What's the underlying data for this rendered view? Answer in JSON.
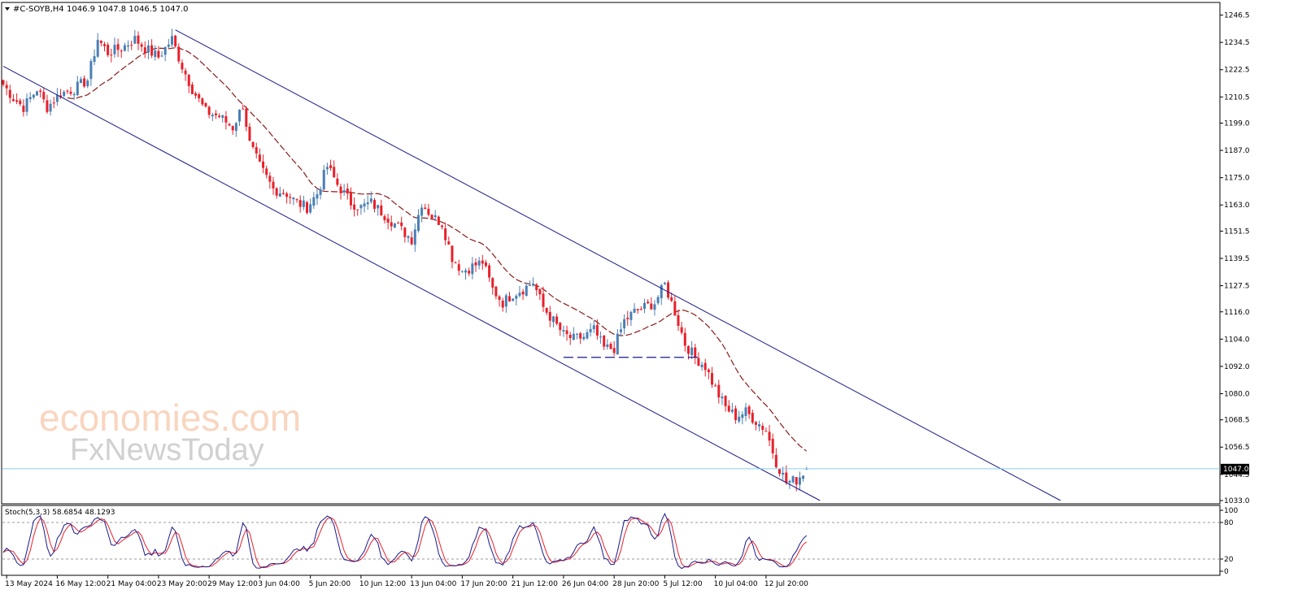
{
  "header": {
    "symbol_label": "#C-SOYB,H4",
    "ohlc_label": "1046.9 1047.8 1046.5 1047.0"
  },
  "price_axis": {
    "ticks": [
      "1246.5",
      "1234.5",
      "1222.5",
      "1210.5",
      "1199.0",
      "1187.0",
      "1175.0",
      "1163.0",
      "1151.5",
      "1139.5",
      "1127.5",
      "1116.0",
      "1104.0",
      "1092.0",
      "1080.0",
      "1068.5",
      "1056.5",
      "1044.5",
      "1033.0"
    ],
    "tick_values": [
      1246.5,
      1234.5,
      1222.5,
      1210.5,
      1199.0,
      1187.0,
      1175.0,
      1163.0,
      1151.5,
      1139.5,
      1127.5,
      1116.0,
      1104.0,
      1092.0,
      1080.0,
      1068.5,
      1056.5,
      1044.5,
      1033.0
    ],
    "current_price_label": "1047.0",
    "current_price": 1047.0
  },
  "time_axis": {
    "labels": [
      "13 May 2024",
      "16 May 12:00",
      "21 May 04:00",
      "23 May 20:00",
      "29 May 12:00",
      "3 Jun 04:00",
      "5 Jun 20:00",
      "10 Jun 12:00",
      "13 Jun 04:00",
      "17 Jun 20:00",
      "21 Jun 12:00",
      "26 Jun 04:00",
      "28 Jun 20:00",
      "5 Jul 12:00",
      "10 Jul 04:00",
      "12 Jul 20:00"
    ],
    "label_bar_index": [
      1,
      16,
      31,
      46,
      61,
      76,
      91,
      106,
      121,
      136,
      151,
      166,
      181,
      196,
      211,
      226
    ]
  },
  "watermark": {
    "line1": "economies.com",
    "line2": "FxNewsToday"
  },
  "stoch": {
    "label": "Stoch(5,3,3) 58.6854 48.1293",
    "levels": [
      "100",
      "80",
      "20",
      "0"
    ],
    "level_values": [
      100,
      80,
      20,
      0
    ]
  },
  "colors": {
    "bull": "#4a7fb5",
    "bear": "#e8202a",
    "channel": "#1a1a8c",
    "ma": "#8b1a1a",
    "stoch_main": "#1a1a8c",
    "stoch_signal": "#e8202a",
    "price_line": "#87ceeb"
  },
  "chart_data": {
    "type": "candlestick",
    "timeframe": "H4",
    "symbol": "#C-SOYB",
    "price_range": [
      1033.0,
      1251.0
    ],
    "close_keypoints": [
      [
        0,
        1216
      ],
      [
        3,
        1210
      ],
      [
        6,
        1206
      ],
      [
        10,
        1214
      ],
      [
        13,
        1206
      ],
      [
        17,
        1212
      ],
      [
        21,
        1214
      ],
      [
        25,
        1218
      ],
      [
        28,
        1236
      ],
      [
        31,
        1230
      ],
      [
        35,
        1232
      ],
      [
        39,
        1236
      ],
      [
        42,
        1232
      ],
      [
        46,
        1228
      ],
      [
        50,
        1236
      ],
      [
        53,
        1224
      ],
      [
        56,
        1214
      ],
      [
        60,
        1204
      ],
      [
        64,
        1202
      ],
      [
        68,
        1197
      ],
      [
        71,
        1207
      ],
      [
        73,
        1190
      ],
      [
        76,
        1180
      ],
      [
        80,
        1170
      ],
      [
        84,
        1168
      ],
      [
        87,
        1164
      ],
      [
        90,
        1162
      ],
      [
        93,
        1168
      ],
      [
        96,
        1180
      ],
      [
        99,
        1172
      ],
      [
        103,
        1164
      ],
      [
        106,
        1162
      ],
      [
        109,
        1164
      ],
      [
        112,
        1160
      ],
      [
        115,
        1156
      ],
      [
        118,
        1152
      ],
      [
        121,
        1148
      ],
      [
        124,
        1164
      ],
      [
        127,
        1158
      ],
      [
        130,
        1155
      ],
      [
        133,
        1140
      ],
      [
        136,
        1134
      ],
      [
        139,
        1136
      ],
      [
        142,
        1138
      ],
      [
        145,
        1126
      ],
      [
        148,
        1120
      ],
      [
        151,
        1124
      ],
      [
        154,
        1126
      ],
      [
        157,
        1129
      ],
      [
        160,
        1118
      ],
      [
        163,
        1112
      ],
      [
        166,
        1106
      ],
      [
        169,
        1104
      ],
      [
        172,
        1105
      ],
      [
        175,
        1108
      ],
      [
        178,
        1100
      ],
      [
        181,
        1100
      ],
      [
        184,
        1112
      ],
      [
        187,
        1116
      ],
      [
        190,
        1118
      ],
      [
        193,
        1120
      ],
      [
        196,
        1128
      ],
      [
        199,
        1116
      ],
      [
        202,
        1102
      ],
      [
        205,
        1096
      ],
      [
        208,
        1092
      ],
      [
        211,
        1082
      ],
      [
        214,
        1074
      ],
      [
        217,
        1070
      ],
      [
        220,
        1072
      ],
      [
        223,
        1068
      ],
      [
        226,
        1064
      ],
      [
        229,
        1050
      ],
      [
        232,
        1041
      ],
      [
        235,
        1042
      ],
      [
        238,
        1047.0
      ]
    ],
    "channel_upper": [
      [
        51,
        1240
      ],
      [
        242,
        1033
      ]
    ],
    "channel_lower": [
      [
        0,
        1224
      ],
      [
        242,
        1033
      ]
    ],
    "support_line": {
      "price": 1096,
      "from_bar": 166,
      "to_bar": 206
    },
    "moving_average_period": 20,
    "stochastic": {
      "k_period": 5,
      "d_period": 3,
      "slowing": 3,
      "main": 58.6854,
      "signal": 48.1293,
      "levels": [
        80,
        20
      ]
    }
  }
}
